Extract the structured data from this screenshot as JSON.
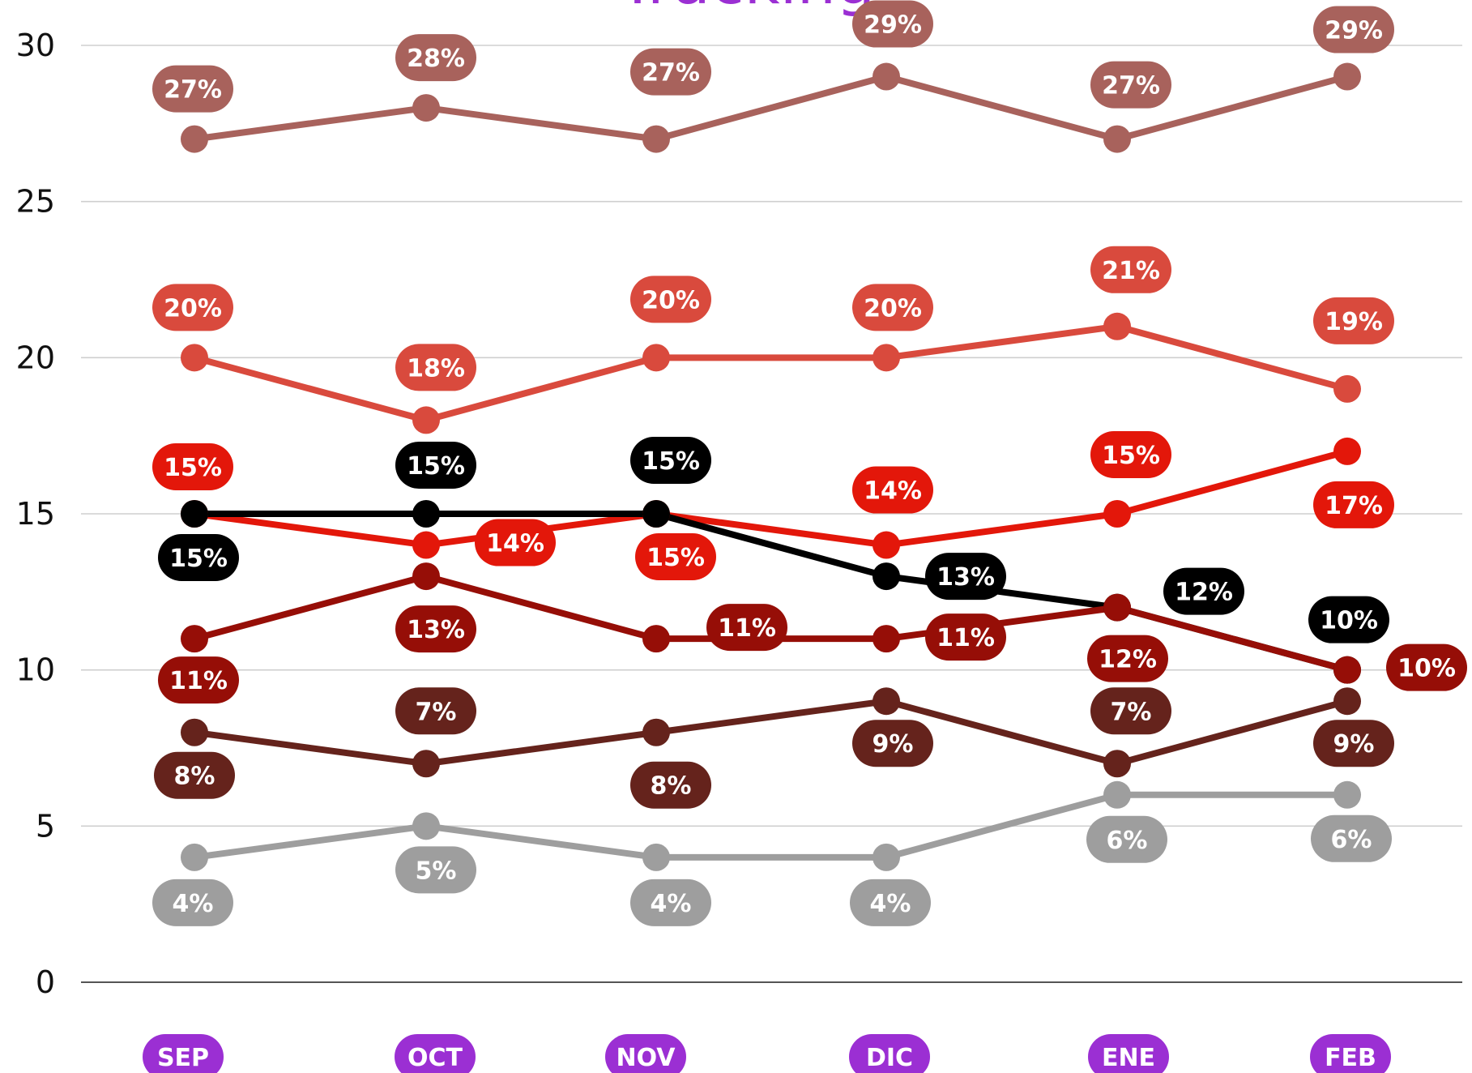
{
  "chart_data": {
    "type": "line",
    "title": "Tracking",
    "title_color": "#9b2fd3",
    "xlabel": "",
    "ylabel": "",
    "categories": [
      "SEP",
      "OCT",
      "NOV",
      "DIC",
      "ENE",
      "FEB"
    ],
    "category_badge_color": "#9b2fd3",
    "y_ticks": [
      0,
      5,
      10,
      15,
      20,
      25,
      30
    ],
    "ylim": [
      0,
      30
    ],
    "grid": true,
    "legend": "none",
    "series": [
      {
        "color": "#a8625c",
        "values": [
          27,
          28,
          27,
          29,
          27,
          29
        ],
        "labels": [
          "27%",
          "28%",
          "27%",
          "29%",
          "27%",
          "29%"
        ]
      },
      {
        "color": "#d94a3d",
        "values": [
          20,
          18,
          20,
          20,
          21,
          19
        ],
        "labels": [
          "20%",
          "18%",
          "20%",
          "20%",
          "21%",
          "19%"
        ]
      },
      {
        "color": "#e3170a",
        "values": [
          15,
          14,
          15,
          14,
          15,
          17
        ],
        "labels": [
          "15%",
          "14%",
          "15%",
          "14%",
          "15%",
          "17%"
        ]
      },
      {
        "color": "#000000",
        "values": [
          15,
          15,
          15,
          13,
          12,
          10
        ],
        "labels": [
          "15%",
          "15%",
          "15%",
          "13%",
          "12%",
          "10%"
        ]
      },
      {
        "color": "#960e07",
        "values": [
          11,
          13,
          11,
          11,
          12,
          10
        ],
        "labels": [
          "11%",
          "13%",
          "11%",
          "11%",
          "12%",
          "10%"
        ]
      },
      {
        "color": "#65231c",
        "values": [
          8,
          7,
          8,
          9,
          7,
          9
        ],
        "labels": [
          "8%",
          "7%",
          "8%",
          "9%",
          "7%",
          "9%"
        ]
      },
      {
        "color": "#9e9e9e",
        "values": [
          4,
          5,
          4,
          4,
          6,
          6
        ],
        "labels": [
          "4%",
          "5%",
          "4%",
          "4%",
          "6%",
          "6%"
        ]
      }
    ]
  }
}
